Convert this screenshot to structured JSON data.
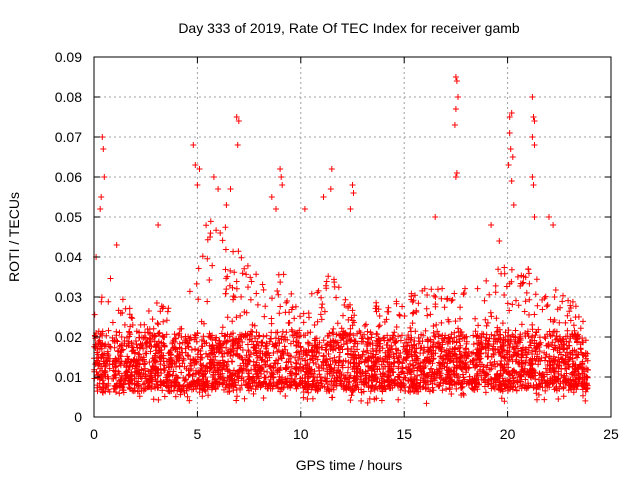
{
  "chart_data": {
    "type": "scatter",
    "title": "Day 333 of 2019, Rate Of TEC Index for receiver gamb",
    "xlabel": "GPS time / hours",
    "ylabel": "ROTI / TECUs",
    "xlim": [
      0,
      25
    ],
    "ylim": [
      0,
      0.09
    ],
    "x_ticks": [
      "0",
      "5",
      "10",
      "15",
      "20",
      "25"
    ],
    "y_ticks": [
      "0",
      "0.01",
      "0.02",
      "0.03",
      "0.04",
      "0.05",
      "0.06",
      "0.07",
      "0.08",
      "0.09"
    ],
    "grid": true,
    "marker": "+",
    "color": "#ff0000",
    "x_range_of_data": [
      0,
      23.9
    ],
    "series": [
      {
        "name": "ROTI",
        "profile_hours": [
          0,
          0.5,
          1,
          1.5,
          2,
          2.5,
          3,
          3.5,
          4,
          4.5,
          5,
          5.5,
          6,
          6.5,
          7,
          7.5,
          8,
          8.5,
          9,
          9.5,
          10,
          10.5,
          11,
          11.5,
          12,
          12.5,
          13,
          13.5,
          14,
          14.5,
          15,
          15.5,
          16,
          16.5,
          17,
          17.5,
          18,
          18.5,
          19,
          19.5,
          20,
          20.5,
          21,
          21.5,
          22,
          22.5,
          23,
          23.5,
          23.9
        ],
        "typical_max_roti": [
          0.027,
          0.032,
          0.036,
          0.03,
          0.027,
          0.026,
          0.03,
          0.028,
          0.026,
          0.033,
          0.045,
          0.05,
          0.052,
          0.048,
          0.044,
          0.04,
          0.035,
          0.033,
          0.037,
          0.035,
          0.033,
          0.031,
          0.034,
          0.036,
          0.03,
          0.028,
          0.026,
          0.028,
          0.03,
          0.029,
          0.03,
          0.031,
          0.033,
          0.034,
          0.034,
          0.035,
          0.033,
          0.034,
          0.038,
          0.037,
          0.038,
          0.036,
          0.037,
          0.035,
          0.032,
          0.031,
          0.03,
          0.028,
          0.024
        ],
        "typical_min_roti": 0.003,
        "points": [
          [
            0.4,
            0.07
          ],
          [
            0.45,
            0.067
          ],
          [
            0.5,
            0.06
          ],
          [
            0.35,
            0.055
          ],
          [
            0.3,
            0.052
          ],
          [
            0.1,
            0.04
          ],
          [
            1.1,
            0.043
          ],
          [
            3.1,
            0.048
          ],
          [
            4.8,
            0.068
          ],
          [
            4.9,
            0.063
          ],
          [
            5.0,
            0.058
          ],
          [
            5.1,
            0.062
          ],
          [
            5.8,
            0.06
          ],
          [
            6.0,
            0.057
          ],
          [
            6.9,
            0.075
          ],
          [
            7.0,
            0.074
          ],
          [
            6.95,
            0.068
          ],
          [
            6.6,
            0.057
          ],
          [
            6.4,
            0.053
          ],
          [
            8.6,
            0.055
          ],
          [
            9.0,
            0.062
          ],
          [
            9.05,
            0.06
          ],
          [
            9.1,
            0.058
          ],
          [
            8.8,
            0.052
          ],
          [
            10.2,
            0.052
          ],
          [
            11.1,
            0.055
          ],
          [
            11.5,
            0.062
          ],
          [
            11.45,
            0.057
          ],
          [
            12.5,
            0.058
          ],
          [
            12.55,
            0.056
          ],
          [
            12.4,
            0.052
          ],
          [
            16.5,
            0.05
          ],
          [
            17.5,
            0.085
          ],
          [
            17.55,
            0.084
          ],
          [
            17.6,
            0.08
          ],
          [
            17.5,
            0.077
          ],
          [
            17.45,
            0.073
          ],
          [
            17.55,
            0.061
          ],
          [
            17.5,
            0.06
          ],
          [
            20.1,
            0.075
          ],
          [
            20.2,
            0.076
          ],
          [
            20.1,
            0.071
          ],
          [
            20.15,
            0.067
          ],
          [
            20.25,
            0.065
          ],
          [
            20.05,
            0.063
          ],
          [
            20.2,
            0.059
          ],
          [
            20.3,
            0.053
          ],
          [
            21.2,
            0.08
          ],
          [
            21.25,
            0.075
          ],
          [
            21.3,
            0.074
          ],
          [
            21.2,
            0.07
          ],
          [
            21.3,
            0.068
          ],
          [
            21.2,
            0.06
          ],
          [
            21.25,
            0.058
          ],
          [
            21.3,
            0.05
          ],
          [
            22.0,
            0.05
          ],
          [
            22.2,
            0.048
          ],
          [
            19.2,
            0.048
          ],
          [
            19.6,
            0.044
          ]
        ]
      }
    ]
  }
}
